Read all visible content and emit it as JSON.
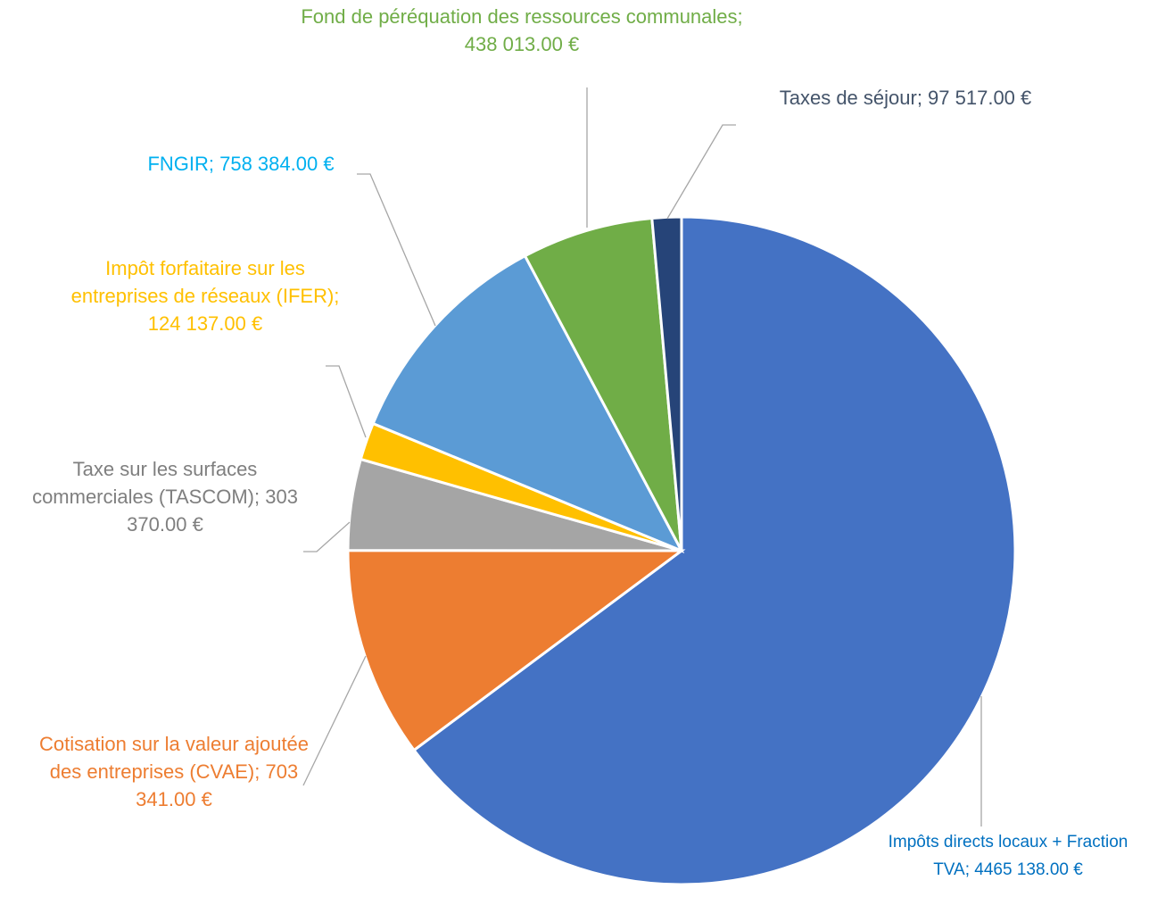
{
  "chart_data": {
    "type": "pie",
    "values": [
      4465138.0,
      703341.0,
      303370.0,
      124137.0,
      758384.0,
      438013.0,
      97517.0
    ],
    "value_labels": [
      "Impôts directs locaux + Fraction TVA; 4465 138.00 €",
      "Cotisation sur la valeur ajoutée des entreprises (CVAE); 703 341.00 €",
      "Taxe sur les surfaces commerciales (TASCOM); 303 370.00 €",
      "Impôt forfaitaire sur les entreprises de réseaux (IFER); 124 137.00 €",
      "FNGIR; 758 384.00 €",
      "Fond de péréquation des ressources communales; 438 013.00 €",
      "Taxes de séjour; 97 517.00 €"
    ],
    "colors": [
      "#4472c4",
      "#ed7d31",
      "#a5a5a5",
      "#ffc000",
      "#5b9bd5",
      "#70ad47",
      "#264478"
    ],
    "label_colors": [
      "#0070c0",
      "#ed7d31",
      "#7f7f7f",
      "#ffc000",
      "#00b0f0",
      "#70ad47",
      "#44546a"
    ]
  }
}
